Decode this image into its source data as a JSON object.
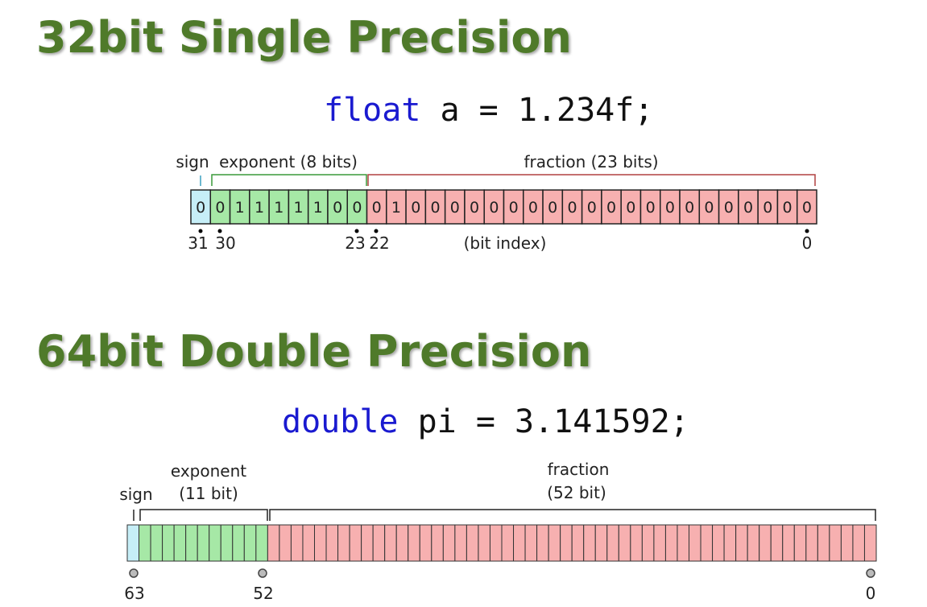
{
  "single": {
    "title": "32bit Single Precision",
    "code": {
      "keyword": "float",
      "rest": "a = 1.234f;"
    },
    "labels": {
      "sign": "sign",
      "exponent": "exponent (8 bits)",
      "fraction": "fraction (23 bits)",
      "bit_index": "(bit index)"
    },
    "bits": [
      0,
      0,
      1,
      1,
      1,
      1,
      1,
      0,
      0,
      0,
      1,
      0,
      0,
      0,
      0,
      0,
      0,
      0,
      0,
      0,
      0,
      0,
      0,
      0,
      0,
      0,
      0,
      0,
      0,
      0,
      0,
      0
    ],
    "indices": [
      "31",
      "30",
      "23",
      "22",
      "0"
    ]
  },
  "double": {
    "title": "64bit Double Precision",
    "code": {
      "keyword": "double",
      "rest": "pi = 3.141592;"
    },
    "labels": {
      "sign": "sign",
      "exponent": "exponent",
      "exponent_bits": "(11 bit)",
      "fraction": "fraction",
      "fraction_bits": "(52 bit)"
    },
    "indices": [
      "63",
      "52",
      "0"
    ]
  }
}
